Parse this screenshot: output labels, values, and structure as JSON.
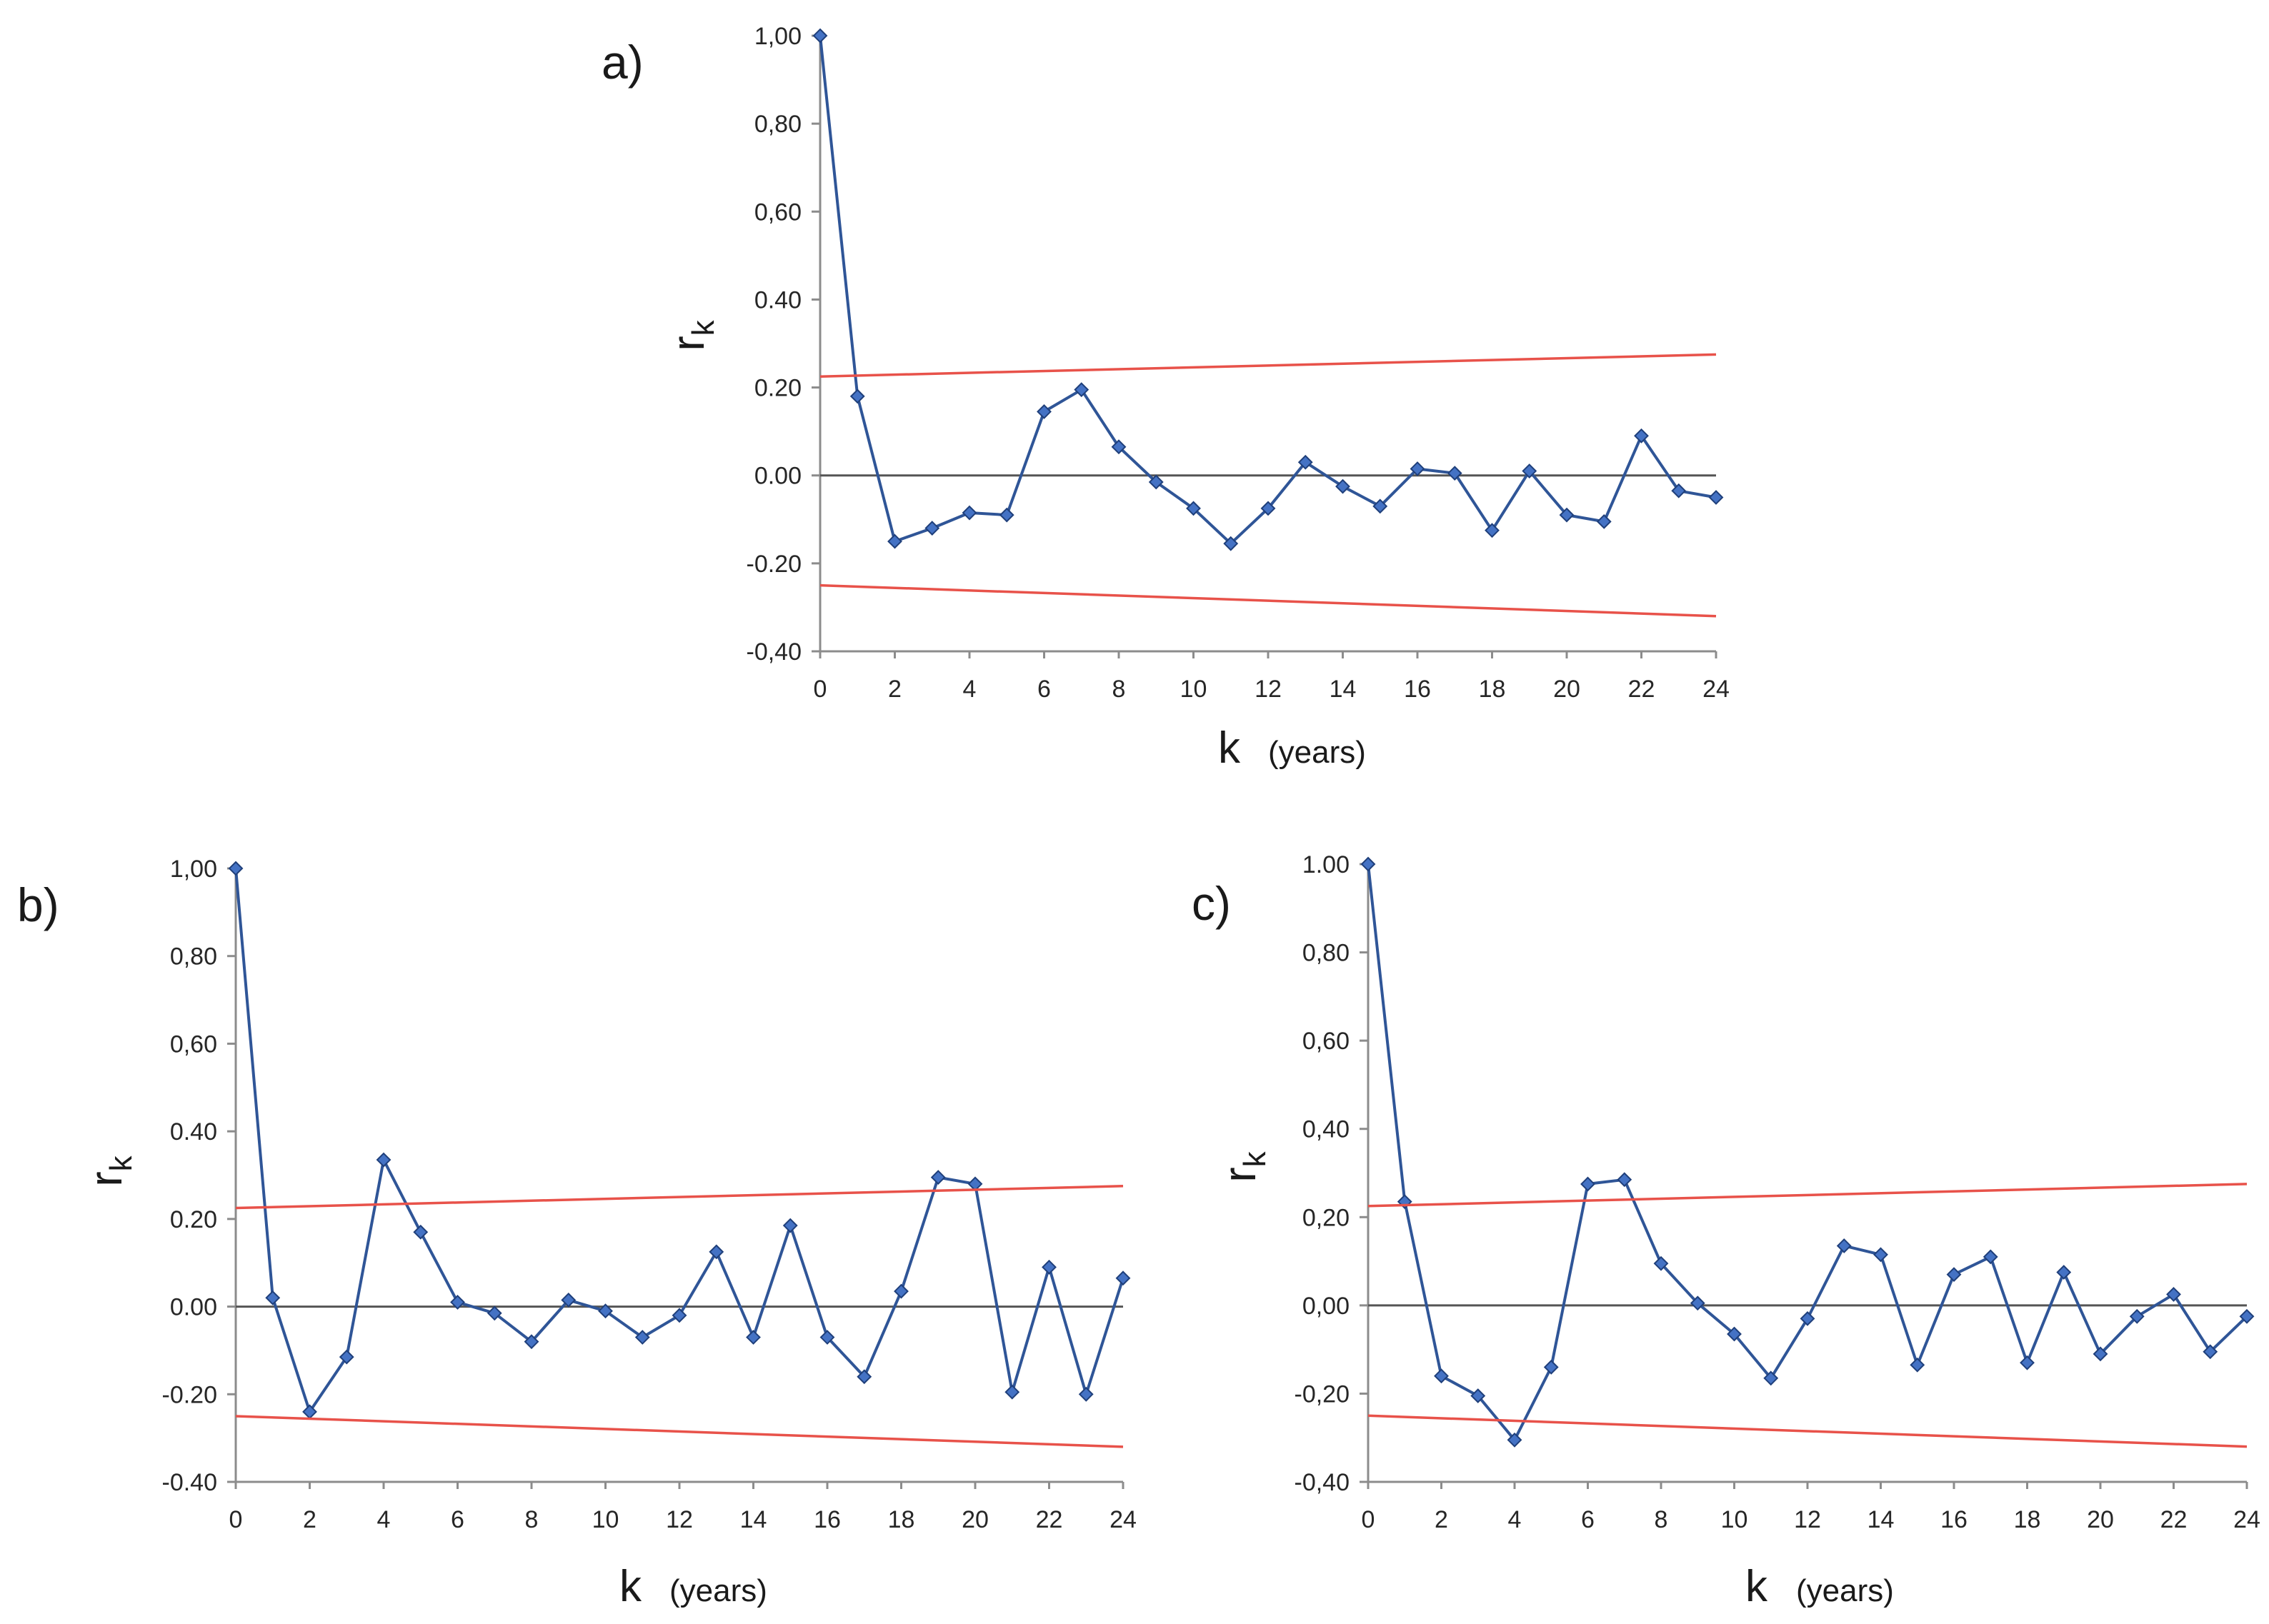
{
  "chart_data": [
    {
      "id": "a",
      "panel_label": "a)",
      "type": "line",
      "xlabel": "k",
      "xlabel_unit": "(years)",
      "ylabel": "r",
      "ylabel_sub": "k",
      "ylim": [
        -0.4,
        1.0
      ],
      "xlim": [
        0,
        24
      ],
      "yticks": [
        -0.4,
        -0.2,
        0.0,
        0.2,
        0.4,
        0.6,
        0.8,
        1.0
      ],
      "ytick_labels": [
        "-0,40",
        "-0.20",
        "0.00",
        "0.20",
        "0.40",
        "0,60",
        "0,80",
        "1,00"
      ],
      "xticks": [
        0,
        2,
        4,
        6,
        8,
        10,
        12,
        14,
        16,
        18,
        20,
        22,
        24
      ],
      "xtick_labels": [
        "0",
        "2",
        "4",
        "6",
        "8",
        "10",
        "12",
        "14",
        "16",
        "18",
        "20",
        "22",
        "24"
      ],
      "series": [
        {
          "name": "r_k",
          "color": "#2f5597",
          "x": [
            0,
            1,
            2,
            3,
            4,
            5,
            6,
            7,
            8,
            9,
            10,
            11,
            12,
            13,
            14,
            15,
            16,
            17,
            18,
            19,
            20,
            21,
            22,
            23,
            24
          ],
          "values": [
            1.0,
            0.18,
            -0.15,
            -0.12,
            -0.085,
            -0.09,
            0.145,
            0.195,
            0.065,
            -0.015,
            -0.075,
            -0.155,
            -0.075,
            0.03,
            -0.025,
            -0.07,
            0.015,
            0.005,
            -0.125,
            0.01,
            -0.09,
            -0.105,
            0.09,
            -0.035,
            -0.05
          ]
        },
        {
          "name": "upper confidence limit",
          "color": "#e8524a",
          "x": [
            0,
            24
          ],
          "values": [
            0.225,
            0.275
          ]
        },
        {
          "name": "lower confidence limit",
          "color": "#e8524a",
          "x": [
            0,
            24
          ],
          "values": [
            -0.25,
            -0.32
          ]
        }
      ]
    },
    {
      "id": "b",
      "panel_label": "b)",
      "type": "line",
      "xlabel": "k",
      "xlabel_unit": "(years)",
      "ylabel": "r",
      "ylabel_sub": "k",
      "ylim": [
        -0.4,
        1.0
      ],
      "xlim": [
        0,
        24
      ],
      "yticks": [
        -0.4,
        -0.2,
        0.0,
        0.2,
        0.4,
        0.6,
        0.8,
        1.0
      ],
      "ytick_labels": [
        "-0.40",
        "-0.20",
        "0.00",
        "0.20",
        "0.40",
        "0,60",
        "0,80",
        "1,00"
      ],
      "xticks": [
        0,
        2,
        4,
        6,
        8,
        10,
        12,
        14,
        16,
        18,
        20,
        22,
        24
      ],
      "xtick_labels": [
        "0",
        "2",
        "4",
        "6",
        "8",
        "10",
        "12",
        "14",
        "16",
        "18",
        "20",
        "22",
        "24"
      ],
      "series": [
        {
          "name": "r_k",
          "color": "#2f5597",
          "x": [
            0,
            1,
            2,
            3,
            4,
            5,
            6,
            7,
            8,
            9,
            10,
            11,
            12,
            13,
            14,
            15,
            16,
            17,
            18,
            19,
            20,
            21,
            22,
            23,
            24
          ],
          "values": [
            1.0,
            0.02,
            -0.24,
            -0.115,
            0.335,
            0.17,
            0.01,
            -0.015,
            -0.08,
            0.015,
            -0.01,
            -0.07,
            -0.02,
            0.125,
            -0.07,
            0.185,
            -0.07,
            -0.16,
            0.035,
            0.295,
            0.28,
            -0.195,
            0.09,
            -0.2,
            0.065
          ]
        },
        {
          "name": "upper confidence limit",
          "color": "#e8524a",
          "x": [
            0,
            24
          ],
          "values": [
            0.225,
            0.275
          ]
        },
        {
          "name": "lower confidence limit",
          "color": "#e8524a",
          "x": [
            0,
            24
          ],
          "values": [
            -0.25,
            -0.32
          ]
        }
      ]
    },
    {
      "id": "c",
      "panel_label": "c)",
      "type": "line",
      "xlabel": "k",
      "xlabel_unit": "(years)",
      "ylabel": "r",
      "ylabel_sub": "k",
      "ylim": [
        -0.4,
        1.0
      ],
      "xlim": [
        0,
        24
      ],
      "yticks": [
        -0.4,
        -0.2,
        0.0,
        0.2,
        0.4,
        0.6,
        0.8,
        1.0
      ],
      "ytick_labels": [
        "-0,40",
        "-0,20",
        "0,00",
        "0,20",
        "0,40",
        "0,60",
        "0,80",
        "1.00"
      ],
      "xticks": [
        0,
        2,
        4,
        6,
        8,
        10,
        12,
        14,
        16,
        18,
        20,
        22,
        24
      ],
      "xtick_labels": [
        "0",
        "2",
        "4",
        "6",
        "8",
        "10",
        "12",
        "14",
        "16",
        "18",
        "20",
        "22",
        "24"
      ],
      "series": [
        {
          "name": "r_k",
          "color": "#2f5597",
          "x": [
            0,
            1,
            2,
            3,
            4,
            5,
            6,
            7,
            8,
            9,
            10,
            11,
            12,
            13,
            14,
            15,
            16,
            17,
            18,
            19,
            20,
            21,
            22,
            23,
            24
          ],
          "values": [
            1.0,
            0.235,
            -0.16,
            -0.205,
            -0.305,
            -0.14,
            0.275,
            0.285,
            0.095,
            0.005,
            -0.065,
            -0.165,
            -0.03,
            0.135,
            0.115,
            -0.135,
            0.07,
            0.11,
            -0.13,
            0.075,
            -0.11,
            -0.025,
            0.025,
            -0.105,
            -0.025
          ]
        },
        {
          "name": "upper confidence limit",
          "color": "#e8524a",
          "x": [
            0,
            24
          ],
          "values": [
            0.225,
            0.275
          ]
        },
        {
          "name": "lower confidence limit",
          "color": "#e8524a",
          "x": [
            0,
            24
          ],
          "values": [
            -0.25,
            -0.32
          ]
        }
      ]
    }
  ]
}
